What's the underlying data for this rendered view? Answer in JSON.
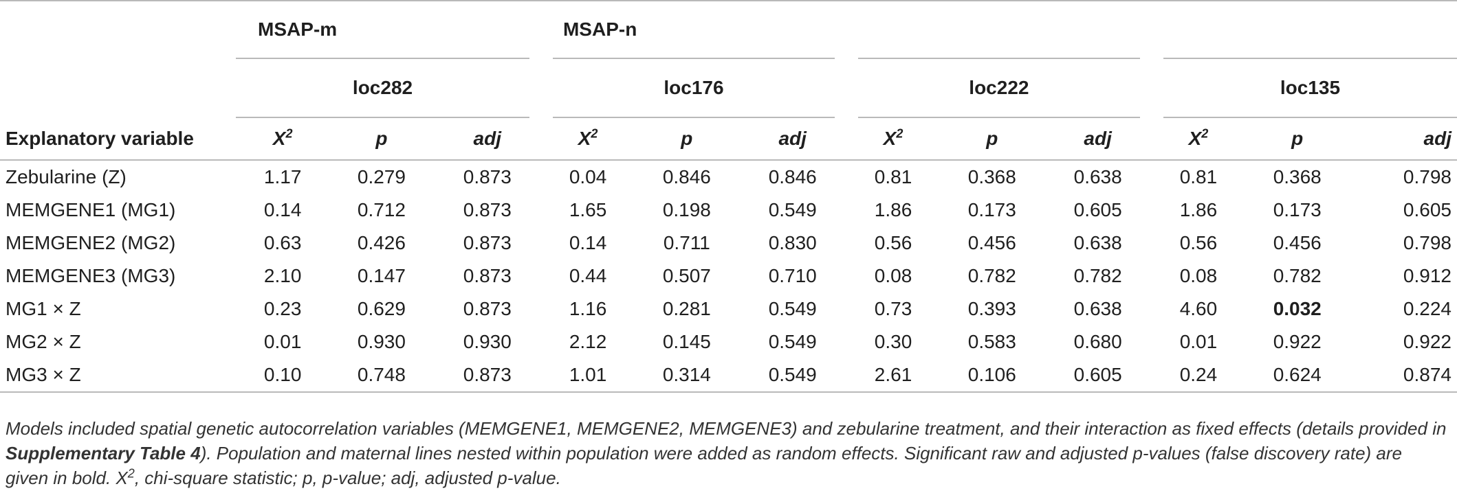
{
  "table": {
    "group_headers": {
      "msap_m": "MSAP-m",
      "msap_n": "MSAP-n"
    },
    "loci": [
      "loc282",
      "loc176",
      "loc222",
      "loc135"
    ],
    "col_headers": {
      "explanatory": "Explanatory variable",
      "x2_base": "X",
      "x2_sup": "2",
      "p": "p",
      "adj": "adj"
    },
    "rows": [
      {
        "label": "Zebularine (Z)",
        "values": [
          "1.17",
          "0.279",
          "0.873",
          "0.04",
          "0.846",
          "0.846",
          "0.81",
          "0.368",
          "0.638",
          "0.81",
          "0.368",
          "0.798"
        ]
      },
      {
        "label": "MEMGENE1 (MG1)",
        "values": [
          "0.14",
          "0.712",
          "0.873",
          "1.65",
          "0.198",
          "0.549",
          "1.86",
          "0.173",
          "0.605",
          "1.86",
          "0.173",
          "0.605"
        ]
      },
      {
        "label": "MEMGENE2 (MG2)",
        "values": [
          "0.63",
          "0.426",
          "0.873",
          "0.14",
          "0.711",
          "0.830",
          "0.56",
          "0.456",
          "0.638",
          "0.56",
          "0.456",
          "0.798"
        ]
      },
      {
        "label": "MEMGENE3 (MG3)",
        "values": [
          "2.10",
          "0.147",
          "0.873",
          "0.44",
          "0.507",
          "0.710",
          "0.08",
          "0.782",
          "0.782",
          "0.08",
          "0.782",
          "0.912"
        ]
      },
      {
        "label": "MG1 × Z",
        "values": [
          "0.23",
          "0.629",
          "0.873",
          "1.16",
          "0.281",
          "0.549",
          "0.73",
          "0.393",
          "0.638",
          "4.60",
          "0.032",
          "0.224"
        ]
      },
      {
        "label": "MG2 × Z",
        "values": [
          "0.01",
          "0.930",
          "0.930",
          "2.12",
          "0.145",
          "0.549",
          "0.30",
          "0.583",
          "0.680",
          "0.01",
          "0.922",
          "0.922"
        ]
      },
      {
        "label": "MG3 × Z",
        "values": [
          "0.10",
          "0.748",
          "0.873",
          "1.01",
          "0.314",
          "0.549",
          "2.61",
          "0.106",
          "0.605",
          "0.24",
          "0.624",
          "0.874"
        ]
      }
    ],
    "bold_cells": [
      [
        4,
        10
      ]
    ]
  },
  "footnote": {
    "part1": "Models included spatial genetic autocorrelation variables (MEMGENE1, MEMGENE2, MEMGENE3) and zebularine treatment, and their interaction as fixed effects (details provided in ",
    "ref": "Supplementary Table 4",
    "part2": "). Population and maternal lines nested within population were added as random effects. Significant raw and adjusted p-values (false discovery rate) are given in bold. ",
    "x2_base": "X",
    "x2_sup": "2",
    "part3": ", chi-square statistic; p, p-value; adj, adjusted p-value."
  }
}
